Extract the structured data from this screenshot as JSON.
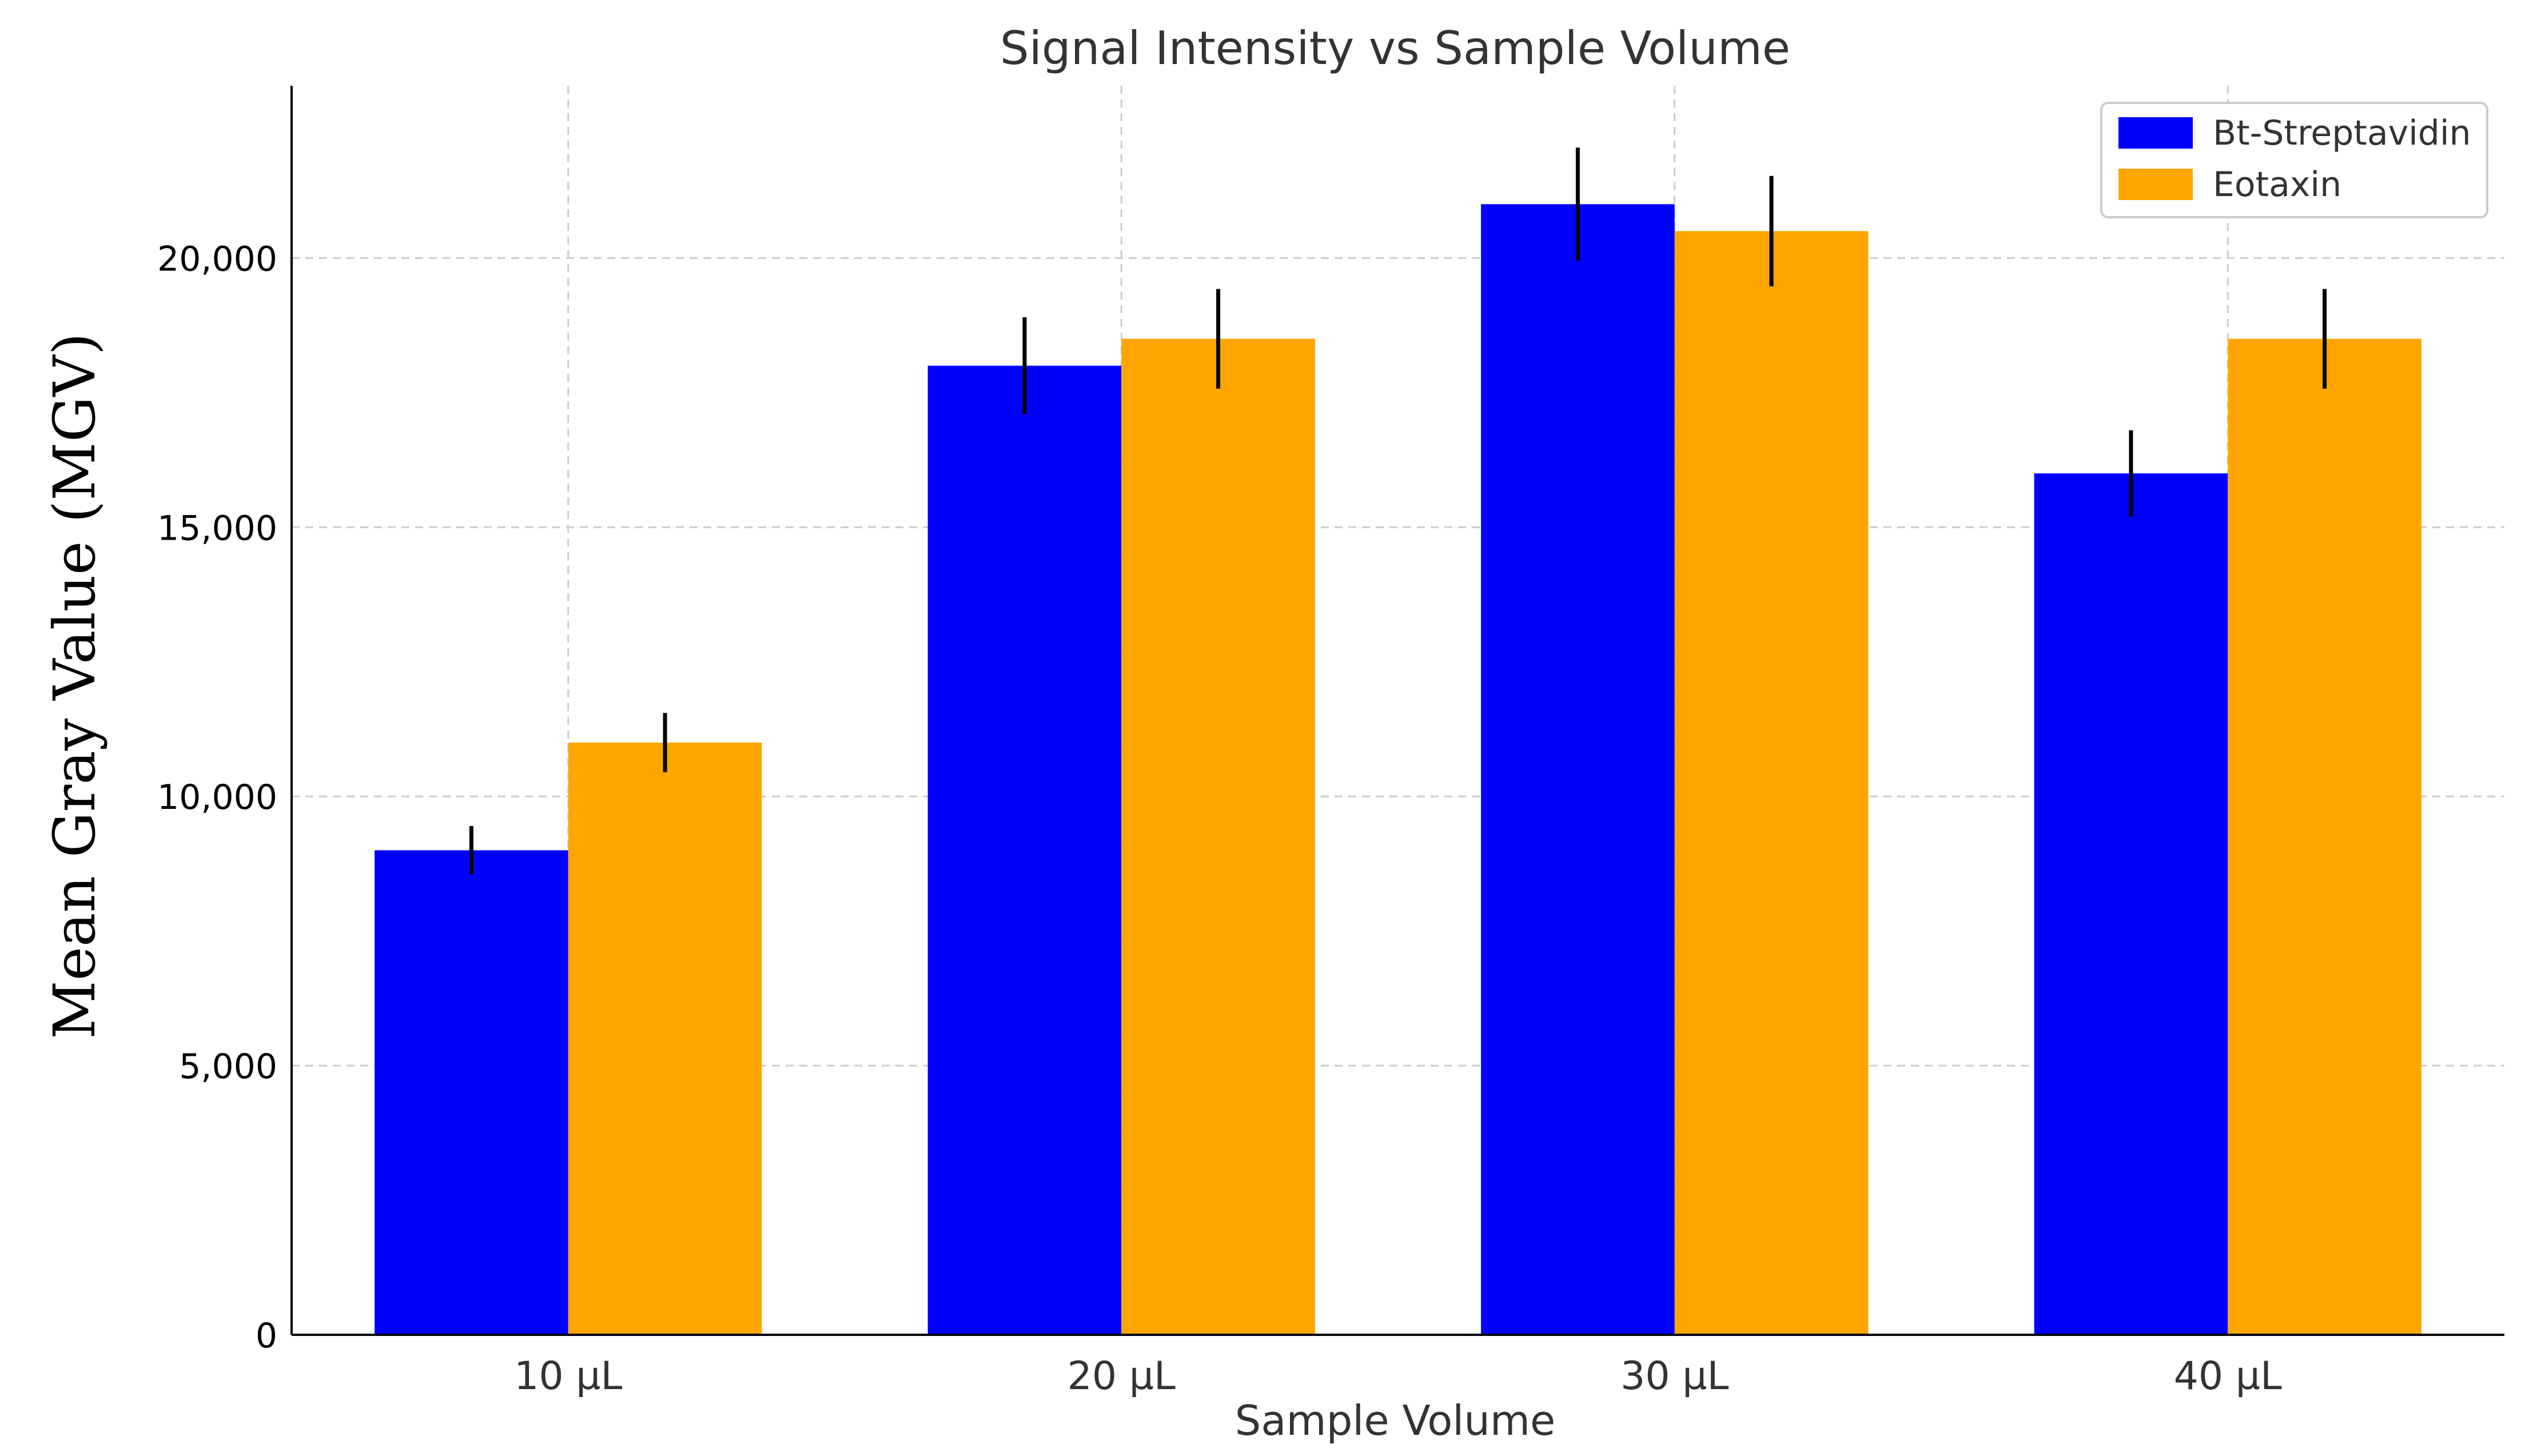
{
  "chart_data": {
    "type": "bar",
    "title": "Signal Intensity vs Sample Volume",
    "xlabel": "Sample Volume",
    "ylabel": "Mean Gray Value (MGV)",
    "categories": [
      "10 µL",
      "20 µL",
      "30 µL",
      "40 µL"
    ],
    "series": [
      {
        "name": "Bt-Streptavidin",
        "color": "#0000ff",
        "values": [
          9000,
          18000,
          21000,
          16000
        ],
        "errors": [
          450,
          900,
          1050,
          800
        ]
      },
      {
        "name": "Eotaxin",
        "color": "#ffa500",
        "values": [
          11000,
          18500,
          20500,
          18500
        ],
        "errors": [
          550,
          925,
          1025,
          925
        ]
      }
    ],
    "yticks": [
      0,
      5000,
      10000,
      15000,
      20000
    ],
    "ytick_labels": [
      "0",
      "5,000",
      "10,000",
      "15,000",
      "20,000"
    ],
    "ylim": [
      0,
      23200
    ],
    "grid": true,
    "legend_position": "top-right"
  }
}
